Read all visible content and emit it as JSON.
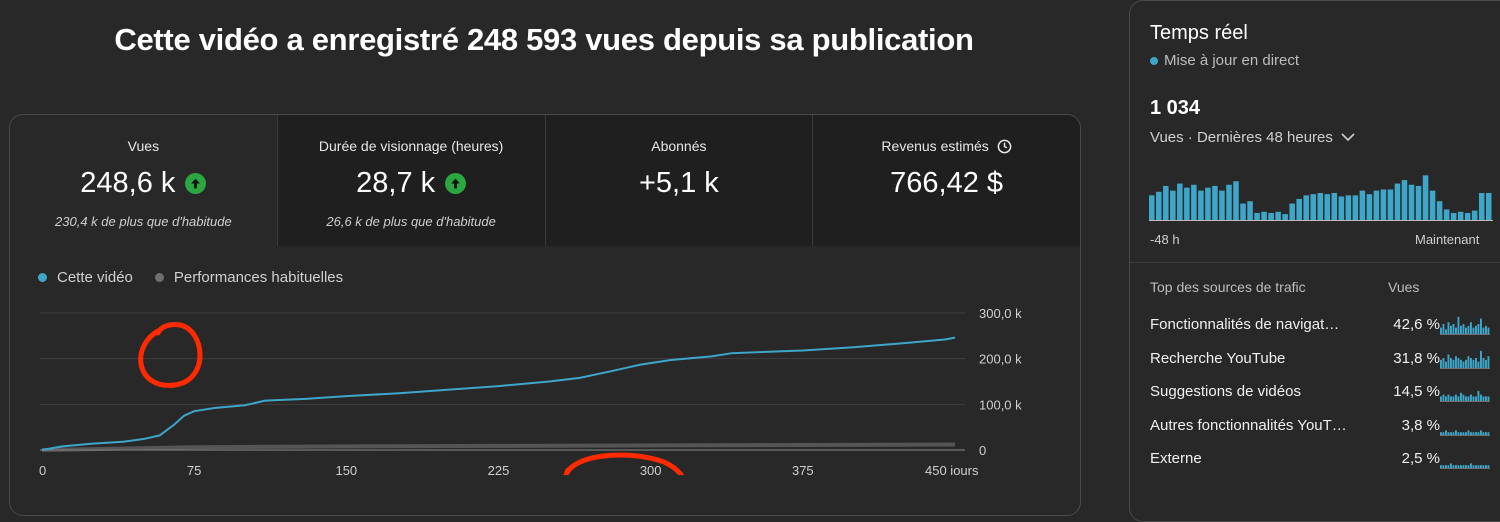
{
  "headline": "Cette vidéo a enregistré 248 593 vues depuis sa publication",
  "metrics": [
    {
      "label": "Vues",
      "value": "248,6 k",
      "trend": "up",
      "sub": "230,4 k de plus que d'habitude",
      "selected": true
    },
    {
      "label": "Durée de visionnage (heures)",
      "value": "28,7 k",
      "trend": "up",
      "sub": "26,6 k de plus que d'habitude",
      "selected": false
    },
    {
      "label": "Abonnés",
      "value": "+5,1 k",
      "trend": "",
      "sub": "",
      "selected": false
    },
    {
      "label": "Revenus estimés",
      "value": "766,42 $",
      "trend": "",
      "sub": "",
      "selected": false,
      "icon": "clock-icon"
    }
  ],
  "legend": {
    "this_video": "Cette vidéo",
    "typical": "Performances habituelles"
  },
  "chart_data": {
    "type": "line",
    "x_ticks": [
      "0",
      "75",
      "150",
      "225",
      "300",
      "375",
      "450 jours"
    ],
    "y_ticks": [
      "0",
      "100,0 k",
      "200,0 k",
      "300,0 k"
    ],
    "xlim": [
      0,
      450
    ],
    "ylim": [
      0,
      300000
    ],
    "grid": true,
    "series": [
      {
        "name": "Cette vidéo",
        "color": "#3ea6c9",
        "x": [
          0,
          10,
          25,
          40,
          50,
          58,
          65,
          70,
          75,
          85,
          100,
          110,
          130,
          150,
          175,
          200,
          225,
          250,
          265,
          280,
          295,
          310,
          330,
          340,
          375,
          400,
          425,
          445,
          450
        ],
        "y": [
          0,
          8000,
          14000,
          18000,
          24000,
          32000,
          55000,
          75000,
          85000,
          92000,
          98000,
          108000,
          112000,
          118000,
          124000,
          132000,
          140000,
          150000,
          158000,
          172000,
          187000,
          197000,
          205000,
          212000,
          218000,
          225000,
          234000,
          242000,
          246000
        ]
      },
      {
        "name": "Performances habituelles",
        "color": "#7a7a7a",
        "x": [
          0,
          75,
          150,
          225,
          300,
          375,
          450
        ],
        "y": [
          0,
          6000,
          8000,
          9000,
          10000,
          11000,
          12000
        ]
      }
    ]
  },
  "realtime": {
    "title": "Temps réel",
    "live": "Mise à jour en direct",
    "count": "1 034",
    "views_label": "Vues · Dernières 48 heures",
    "bars": [
      42,
      48,
      58,
      50,
      62,
      55,
      60,
      50,
      55,
      58,
      50,
      60,
      66,
      28,
      32,
      12,
      14,
      12,
      14,
      10,
      28,
      36,
      42,
      44,
      46,
      44,
      46,
      40,
      42,
      42,
      50,
      44,
      50,
      52,
      52,
      62,
      68,
      60,
      58,
      76,
      50,
      32,
      18,
      12,
      14,
      12,
      16,
      46,
      46
    ],
    "axis_left": "-48 h",
    "axis_right": "Maintenant",
    "sources_header": "Top des sources de trafic",
    "views_header": "Vues",
    "sources": [
      {
        "name": "Fonctionnalités de navigat…",
        "pct": "42,6 %",
        "spark": [
          3,
          5,
          2,
          6,
          4,
          5,
          3,
          9,
          4,
          5,
          3,
          4,
          6,
          3,
          4,
          5,
          8,
          3,
          4,
          3
        ]
      },
      {
        "name": "Recherche YouTube",
        "pct": "31,8 %",
        "spark": [
          4,
          5,
          3,
          7,
          5,
          4,
          6,
          5,
          4,
          3,
          4,
          6,
          5,
          4,
          5,
          3,
          9,
          5,
          4,
          6
        ]
      },
      {
        "name": "Suggestions de vidéos",
        "pct": "14,5 %",
        "spark": [
          2,
          3,
          2,
          3,
          2,
          2,
          3,
          2,
          4,
          3,
          2,
          2,
          3,
          2,
          2,
          5,
          3,
          2,
          2,
          2
        ]
      },
      {
        "name": "Autres fonctionnalités YouT…",
        "pct": "3,8 %",
        "spark": [
          1,
          1,
          2,
          1,
          1,
          1,
          2,
          1,
          1,
          1,
          1,
          2,
          1,
          1,
          1,
          1,
          2,
          1,
          1,
          1
        ]
      },
      {
        "name": "Externe",
        "pct": "2,5 %",
        "spark": [
          1,
          1,
          1,
          1,
          2,
          1,
          1,
          1,
          1,
          1,
          1,
          1,
          2,
          1,
          1,
          1,
          1,
          1,
          1,
          1
        ]
      }
    ]
  },
  "colors": {
    "accent": "#3ea6c9",
    "up": "#2ba640",
    "annotation": "#ff2a00"
  }
}
